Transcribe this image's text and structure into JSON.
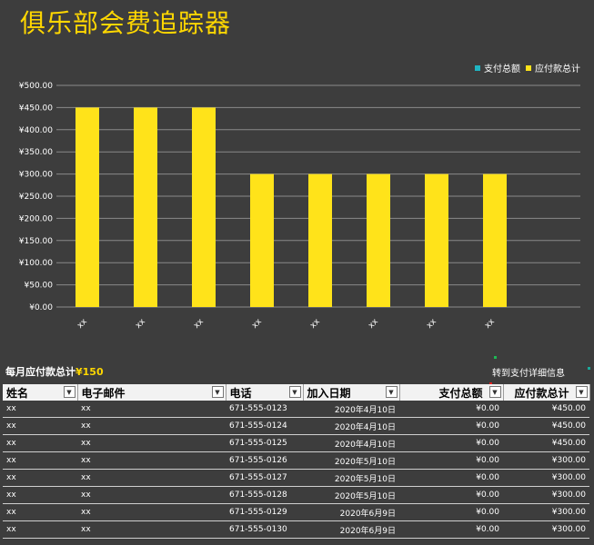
{
  "title": "俱乐部会费追踪器",
  "chart_data": {
    "type": "bar",
    "categories": [
      "xx",
      "xx",
      "xx",
      "xx",
      "xx",
      "xx",
      "xx",
      "xx"
    ],
    "series": [
      {
        "name": "支付总额",
        "values": [
          0,
          0,
          0,
          0,
          0,
          0,
          0,
          0
        ],
        "color": "#1fb5c2"
      },
      {
        "name": "应付款总计",
        "values": [
          450,
          450,
          450,
          300,
          300,
          300,
          300,
          300
        ],
        "color": "#ffe31a"
      }
    ],
    "ylim": [
      0,
      500
    ],
    "yticks": [
      0,
      50,
      100,
      150,
      200,
      250,
      300,
      350,
      400,
      450,
      500
    ],
    "ytick_labels": [
      "¥0.00",
      "¥50.00",
      "¥100.00",
      "¥150.00",
      "¥200.00",
      "¥250.00",
      "¥300.00",
      "¥350.00",
      "¥400.00",
      "¥450.00",
      "¥500.00"
    ],
    "grid": true,
    "legend": "top-right"
  },
  "summary": {
    "label": "每月应付款总计",
    "value": "¥150"
  },
  "goto_link": "转到支付详细信息",
  "table": {
    "headers": {
      "name": "姓名",
      "email": "电子邮件",
      "phone": "电话",
      "join_date": "加入日期",
      "paid": "支付总额",
      "due": "应付款总计"
    },
    "rows": [
      {
        "name": "xx",
        "email": "xx",
        "phone": "671-555-0123",
        "join_date": "2020年4月10日",
        "paid": "¥0.00",
        "due": "¥450.00"
      },
      {
        "name": "xx",
        "email": "xx",
        "phone": "671-555-0124",
        "join_date": "2020年4月10日",
        "paid": "¥0.00",
        "due": "¥450.00"
      },
      {
        "name": "xx",
        "email": "xx",
        "phone": "671-555-0125",
        "join_date": "2020年4月10日",
        "paid": "¥0.00",
        "due": "¥450.00"
      },
      {
        "name": "xx",
        "email": "xx",
        "phone": "671-555-0126",
        "join_date": "2020年5月10日",
        "paid": "¥0.00",
        "due": "¥300.00"
      },
      {
        "name": "xx",
        "email": "xx",
        "phone": "671-555-0127",
        "join_date": "2020年5月10日",
        "paid": "¥0.00",
        "due": "¥300.00"
      },
      {
        "name": "xx",
        "email": "xx",
        "phone": "671-555-0128",
        "join_date": "2020年5月10日",
        "paid": "¥0.00",
        "due": "¥300.00"
      },
      {
        "name": "xx",
        "email": "xx",
        "phone": "671-555-0129",
        "join_date": "2020年6月9日",
        "paid": "¥0.00",
        "due": "¥300.00"
      },
      {
        "name": "xx",
        "email": "xx",
        "phone": "671-555-0130",
        "join_date": "2020年6月9日",
        "paid": "¥0.00",
        "due": "¥300.00"
      }
    ]
  },
  "colors": {
    "background": "#3d3d3d",
    "accent": "#ffd700",
    "header_bg": "#f2f2f2"
  },
  "icons": {
    "filter": "dropdown-filter-icon"
  }
}
